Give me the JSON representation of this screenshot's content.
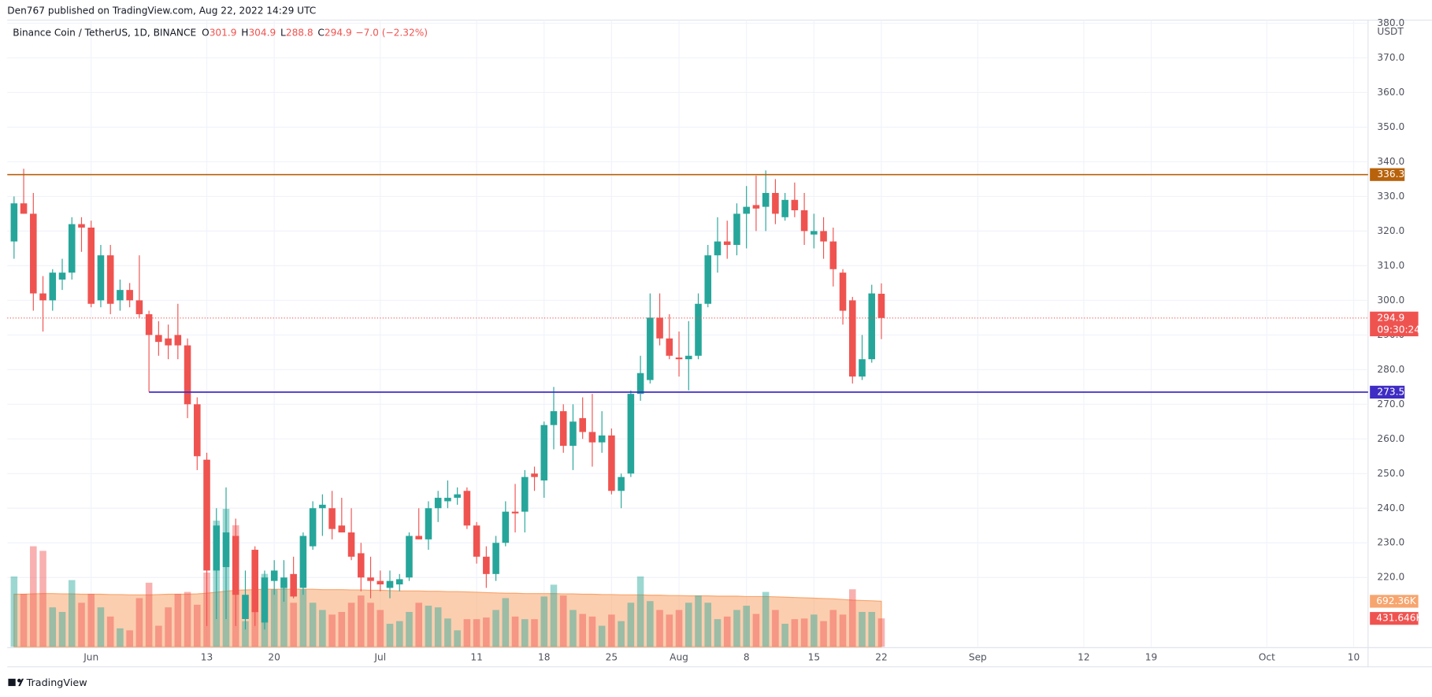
{
  "header": "Den767 published on TradingView.com, Aug 22, 2022 14:29 UTC",
  "footer": "TradingView",
  "chart_data": {
    "type": "candlestick",
    "legend": {
      "symbol": "Binance Coin / TetherUS, 1D, BINANCE",
      "items": [
        {
          "key": "O",
          "value": 301.9
        },
        {
          "key": "H",
          "value": 304.9
        },
        {
          "key": "L",
          "value": 288.8
        },
        {
          "key": "C",
          "value": 294.9
        }
      ],
      "change": "−7.0 (−2.32%)"
    },
    "currency": "USDT",
    "countdown": "09:30:24",
    "up_color": "#26a69a",
    "down_color": "#ef5350",
    "x": [
      0,
      1,
      2,
      3,
      4,
      5,
      6,
      7,
      8,
      9,
      10,
      11,
      12,
      13,
      14,
      15,
      16,
      17,
      18,
      19,
      20,
      21,
      22,
      23,
      24,
      25,
      26,
      27,
      28,
      29,
      30,
      31,
      32,
      33,
      34,
      35,
      36,
      37,
      38,
      39,
      40,
      41,
      42,
      43,
      44,
      45,
      46,
      47,
      48,
      49,
      50,
      51,
      52,
      53,
      54,
      55,
      56,
      57,
      58,
      59,
      60,
      61,
      62,
      63,
      64,
      65,
      66,
      67,
      68,
      69,
      70,
      71,
      72,
      73,
      74,
      75,
      76,
      77,
      78,
      79,
      80,
      81,
      82,
      83,
      84,
      85,
      86,
      87,
      88,
      89,
      90
    ],
    "open": [
      317,
      328,
      325,
      302,
      300,
      306,
      308,
      322,
      321,
      300,
      313,
      300,
      303,
      300,
      296,
      290,
      289,
      290,
      287,
      270,
      254,
      222,
      223,
      232,
      208,
      228,
      207,
      219,
      217,
      221,
      217,
      229,
      240,
      240,
      235,
      233,
      227,
      220,
      219,
      217,
      218,
      220,
      232,
      231,
      240,
      242,
      243,
      245,
      235,
      226,
      221,
      230,
      239,
      239,
      250,
      248,
      264,
      268,
      258,
      266,
      262,
      259,
      261,
      245,
      250,
      273,
      277,
      295,
      289,
      283.5,
      283,
      284,
      299,
      313,
      317,
      316,
      325,
      327.5,
      327,
      331,
      324,
      329,
      326,
      319,
      320,
      317,
      308,
      300,
      278,
      283,
      301.9
    ],
    "high": [
      330,
      338,
      331,
      307,
      309,
      312,
      324,
      324,
      323,
      316,
      316,
      306,
      305,
      313,
      297,
      294,
      293,
      299,
      289,
      272,
      256,
      240,
      246,
      237,
      222,
      229,
      222,
      225,
      225,
      226,
      233,
      242,
      244,
      245,
      243,
      240,
      230,
      226,
      222,
      222,
      221,
      233,
      240,
      242,
      245,
      248,
      246,
      246,
      236,
      229,
      232,
      242,
      247,
      251,
      252,
      265,
      275,
      270,
      270,
      272,
      273,
      268,
      263,
      250,
      274,
      284,
      302,
      302,
      296,
      291,
      294,
      302,
      316,
      324,
      323,
      328,
      333,
      336,
      337.5,
      335,
      331,
      334,
      331,
      325,
      324,
      321,
      309,
      301,
      290,
      304.5,
      304.9
    ],
    "low": [
      312,
      325,
      297,
      291,
      297,
      303,
      306,
      314,
      298,
      298,
      296,
      297,
      298,
      295,
      273.6,
      284,
      283,
      283,
      266,
      251,
      206,
      208,
      208,
      206,
      205,
      206,
      205,
      215,
      213,
      214,
      215,
      228,
      232,
      231,
      233,
      225,
      216,
      214,
      216,
      214,
      216,
      219,
      231,
      228,
      236,
      240,
      241,
      234,
      224,
      217,
      219,
      229,
      233,
      233,
      245,
      243,
      257,
      256,
      251,
      260,
      252,
      256,
      244,
      240,
      249,
      271,
      276,
      287,
      283,
      278,
      274,
      283,
      298,
      308,
      312,
      313,
      315,
      320,
      320,
      322,
      323,
      324,
      316,
      315,
      312,
      304,
      293,
      276,
      277,
      282,
      288.8
    ],
    "close": [
      328,
      325,
      302,
      300,
      308,
      308,
      322,
      321,
      299,
      313,
      299,
      303,
      300,
      296,
      290,
      288,
      287,
      287,
      270,
      255,
      222,
      235,
      233,
      215,
      215,
      210,
      220,
      222,
      220,
      214.5,
      232,
      240,
      241,
      234,
      233,
      226,
      220,
      219,
      218,
      219,
      219.5,
      232,
      231,
      240,
      243,
      243,
      244,
      235,
      226,
      221,
      230,
      239,
      238.5,
      249,
      249,
      264,
      268,
      258,
      265,
      262,
      259,
      261,
      245,
      249,
      273,
      279,
      295,
      289,
      284,
      283,
      284,
      299,
      313,
      317,
      316,
      325,
      327,
      326.5,
      331,
      325,
      329,
      326,
      320,
      320,
      317,
      309,
      297,
      278,
      283,
      302,
      294.9
    ],
    "volume": {
      "values": [
        1070,
        806,
        1530,
        1460,
        600,
        530,
        1015,
        670,
        806,
        600,
        460,
        280,
        250,
        740,
        975,
        320,
        600,
        806,
        835,
        640,
        1130,
        1920,
        2100,
        1850,
        390,
        1430,
        1110,
        875,
        1015,
        670,
        875,
        670,
        560,
        490,
        530,
        670,
        780,
        670,
        560,
        350,
        390,
        530,
        670,
        625,
        600,
        430,
        250,
        420,
        420,
        445,
        560,
        740,
        460,
        420,
        420,
        765,
        945,
        780,
        560,
        500,
        460,
        320,
        490,
        390,
        670,
        1070,
        695,
        560,
        490,
        560,
        670,
        780,
        670,
        420,
        460,
        560,
        625,
        500,
        835,
        560,
        350,
        420,
        430,
        490,
        390,
        560,
        490,
        875,
        530,
        530,
        431.646
      ],
      "scale_label": {
        "value": 431.646,
        "label": "431.646K"
      }
    },
    "volume_ma": {
      "color": "#f7a56e",
      "values": [
        800,
        800,
        805,
        810,
        810,
        805,
        805,
        800,
        800,
        800,
        795,
        795,
        790,
        790,
        790,
        795,
        800,
        800,
        800,
        805,
        815,
        830,
        845,
        860,
        865,
        870,
        875,
        875,
        875,
        875,
        875,
        875,
        870,
        870,
        870,
        865,
        865,
        860,
        860,
        855,
        850,
        850,
        850,
        845,
        845,
        840,
        840,
        835,
        830,
        825,
        820,
        815,
        815,
        810,
        810,
        810,
        810,
        805,
        805,
        800,
        800,
        795,
        795,
        790,
        790,
        790,
        785,
        785,
        780,
        780,
        775,
        775,
        775,
        770,
        770,
        770,
        765,
        765,
        765,
        760,
        755,
        750,
        745,
        740,
        735,
        730,
        720,
        710,
        705,
        700,
        692.36
      ],
      "scale_label": {
        "value": 692.36,
        "label": "692.36K"
      }
    },
    "levels": [
      {
        "value": 336.3,
        "color": "#b8620b",
        "from": -0.7
      },
      {
        "value": 273.5,
        "color": "#3f2cc4",
        "from": 14
      }
    ],
    "xlim": [
      -0.7,
      140.5
    ],
    "xticks": [
      {
        "value": 8,
        "label": "Jun"
      },
      {
        "value": 20,
        "label": "13"
      },
      {
        "value": 27,
        "label": "20"
      },
      {
        "value": 38,
        "label": "Jul"
      },
      {
        "value": 48,
        "label": "11"
      },
      {
        "value": 55,
        "label": "18"
      },
      {
        "value": 62,
        "label": "25"
      },
      {
        "value": 69,
        "label": "Aug"
      },
      {
        "value": 76,
        "label": "8"
      },
      {
        "value": 83,
        "label": "15"
      },
      {
        "value": 90,
        "label": "22"
      },
      {
        "value": 100,
        "label": "Sep"
      },
      {
        "value": 111,
        "label": "12"
      },
      {
        "value": 118,
        "label": "19"
      },
      {
        "value": 130,
        "label": "Oct"
      },
      {
        "value": 139,
        "label": "10"
      }
    ],
    "ylim": [
      200,
      380.9
    ],
    "yticks": [
      {
        "value": 220,
        "label": "220.0"
      },
      {
        "value": 230,
        "label": "230.0"
      },
      {
        "value": 240,
        "label": "240.0"
      },
      {
        "value": 250,
        "label": "250.0"
      },
      {
        "value": 260,
        "label": "260.0"
      },
      {
        "value": 270,
        "label": "270.0"
      },
      {
        "value": 280,
        "label": "280.0"
      },
      {
        "value": 290,
        "label": "290.0"
      },
      {
        "value": 300,
        "label": "300.0"
      },
      {
        "value": 310,
        "label": "310.0"
      },
      {
        "value": 320,
        "label": "320.0"
      },
      {
        "value": 330,
        "label": "330.0"
      },
      {
        "value": 340,
        "label": "340.0"
      },
      {
        "value": 350,
        "label": "350.0"
      },
      {
        "value": 360,
        "label": "360.0"
      },
      {
        "value": 370,
        "label": "370.0"
      },
      {
        "value": 380,
        "label": "380.0"
      }
    ],
    "grid": true
  }
}
